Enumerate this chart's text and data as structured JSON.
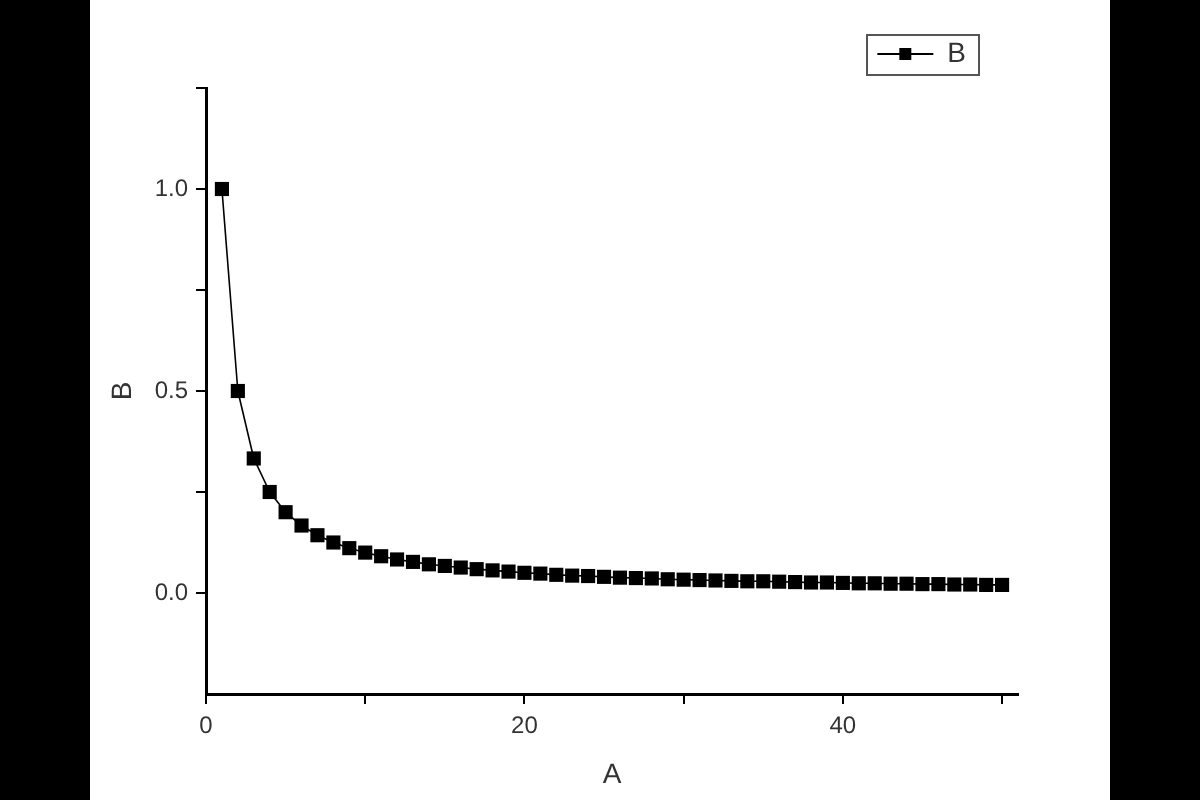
{
  "chart_data": {
    "type": "line",
    "xlabel": "A",
    "ylabel": "B",
    "x": [
      1,
      2,
      3,
      4,
      5,
      6,
      7,
      8,
      9,
      10,
      11,
      12,
      13,
      14,
      15,
      16,
      17,
      18,
      19,
      20,
      21,
      22,
      23,
      24,
      25,
      26,
      27,
      28,
      29,
      30,
      31,
      32,
      33,
      34,
      35,
      36,
      37,
      38,
      39,
      40,
      41,
      42,
      43,
      44,
      45,
      46,
      47,
      48,
      49,
      50
    ],
    "series": [
      {
        "name": "B",
        "color": "#000000",
        "values": [
          1,
          0.5,
          0.333,
          0.25,
          0.2,
          0.167,
          0.143,
          0.125,
          0.111,
          0.1,
          0.091,
          0.083,
          0.077,
          0.071,
          0.067,
          0.063,
          0.059,
          0.056,
          0.053,
          0.05,
          0.048,
          0.045,
          0.043,
          0.042,
          0.04,
          0.038,
          0.037,
          0.036,
          0.034,
          0.033,
          0.032,
          0.031,
          0.03,
          0.029,
          0.029,
          0.028,
          0.027,
          0.026,
          0.026,
          0.025,
          0.024,
          0.024,
          0.023,
          0.023,
          0.022,
          0.022,
          0.021,
          0.021,
          0.02,
          0.02
        ]
      }
    ],
    "xlim": [
      0,
      51
    ],
    "xticks": [
      0,
      {
        "value": 10,
        "label": null
      },
      20,
      {
        "value": 30,
        "label": null
      },
      40,
      {
        "value": 50,
        "label": null
      }
    ],
    "ylim": [
      -0.25,
      1.25
    ],
    "yticks": [
      {
        "value": 0,
        "label": "0.0"
      },
      {
        "value": 0.25,
        "label": null
      },
      {
        "value": 0.5,
        "label": "0.5"
      },
      {
        "value": 0.75,
        "label": null
      },
      {
        "value": 1,
        "label": "1.0"
      },
      {
        "value": 1.25,
        "label": null
      }
    ],
    "legend": "top right",
    "marker": "square",
    "line_style": "solid"
  }
}
